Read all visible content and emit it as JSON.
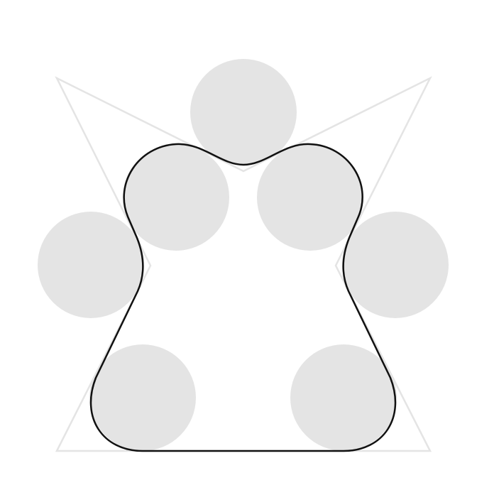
{
  "colors": {
    "background": "#ffffff",
    "circle_fill": "#e4e4e4",
    "guide_stroke": "#e4e4e4",
    "outline_stroke": "#111111"
  },
  "shapes": {
    "circles": [
      "top",
      "upper-left",
      "upper-right",
      "middle-left",
      "middle-right",
      "lower-left",
      "lower-right"
    ],
    "guide_polygon": "star-outline",
    "outline": "smoothed-closed-curve"
  }
}
